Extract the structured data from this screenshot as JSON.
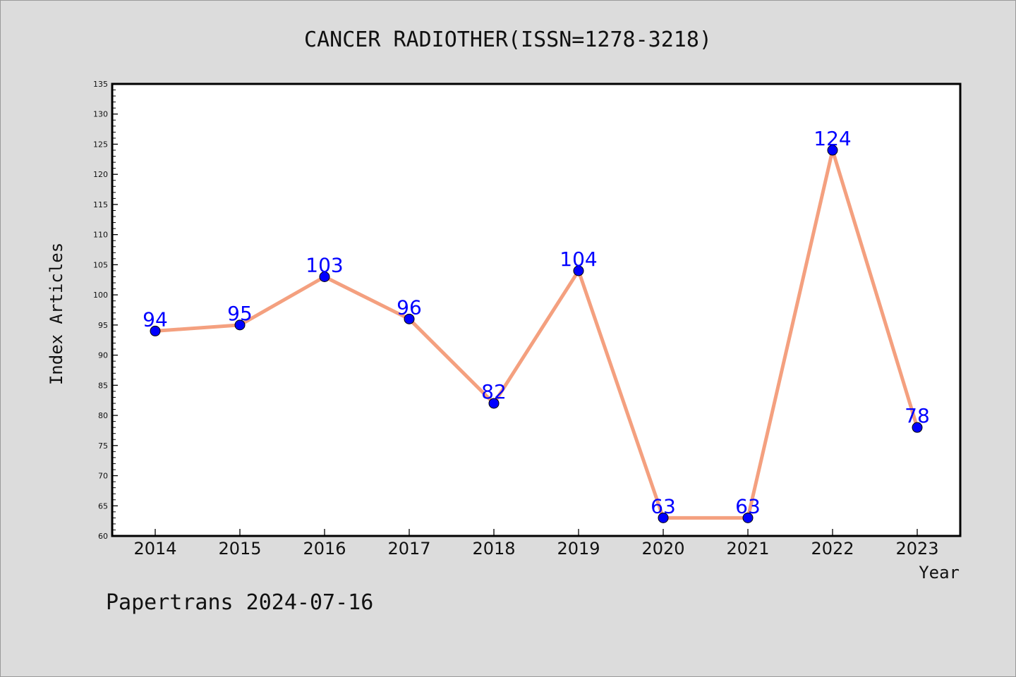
{
  "chart_data": {
    "type": "line",
    "title": "CANCER RADIOTHER(ISSN=1278-3218)",
    "xlabel": "Year",
    "ylabel": "Index Articles",
    "categories": [
      "2014",
      "2015",
      "2016",
      "2017",
      "2018",
      "2019",
      "2020",
      "2021",
      "2022",
      "2023"
    ],
    "values": [
      94,
      95,
      103,
      96,
      82,
      104,
      63,
      63,
      124,
      78
    ],
    "ylim": [
      60,
      135
    ],
    "yticks": [
      60,
      65,
      70,
      75,
      80,
      85,
      90,
      95,
      100,
      105,
      110,
      115,
      120,
      125,
      130,
      135
    ],
    "grid": false,
    "legend": "none",
    "colors": {
      "line": "#f4a07f",
      "marker": "#0000ff",
      "data_label": "#0000ff"
    }
  },
  "footer": "Papertrans 2024-07-16"
}
